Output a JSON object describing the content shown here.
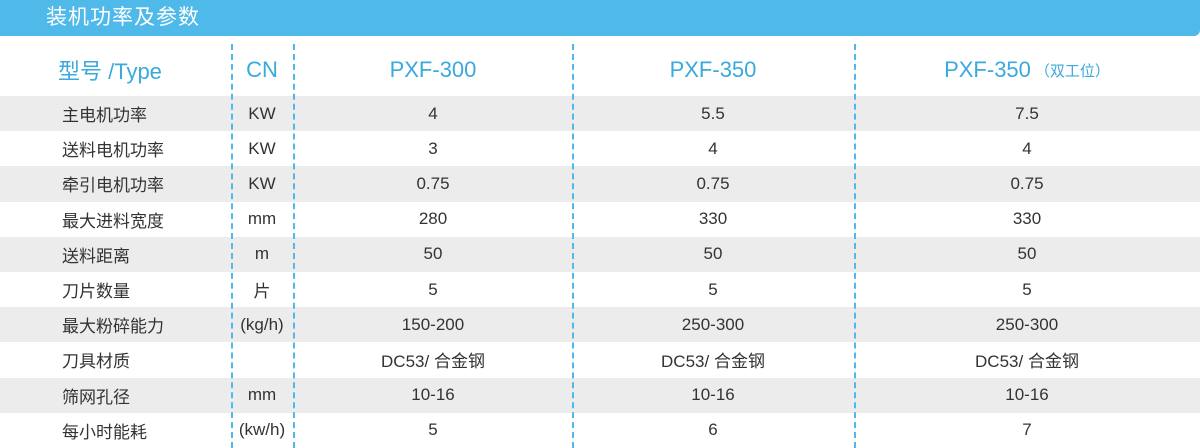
{
  "title": "装机功率及参数",
  "header": {
    "type": "型号 /Type",
    "unit": "CN",
    "models": [
      "PXF-300",
      "PXF-350",
      "PXF-350"
    ],
    "model3_suffix": "（双工位）"
  },
  "rows": [
    {
      "name": "主电机功率",
      "unit": "KW",
      "v": [
        "4",
        "5.5",
        "7.5"
      ]
    },
    {
      "name": "送料电机功率",
      "unit": "KW",
      "v": [
        "3",
        "4",
        "4"
      ]
    },
    {
      "name": "牵引电机功率",
      "unit": "KW",
      "v": [
        "0.75",
        "0.75",
        "0.75"
      ]
    },
    {
      "name": "最大进料宽度",
      "unit": "mm",
      "v": [
        "280",
        "330",
        "330"
      ]
    },
    {
      "name": "送料距离",
      "unit": "m",
      "v": [
        "50",
        "50",
        "50"
      ]
    },
    {
      "name": "刀片数量",
      "unit": "片",
      "v": [
        "5",
        "5",
        "5"
      ]
    },
    {
      "name": "最大粉碎能力",
      "unit": "(kg/h)",
      "v": [
        "150-200",
        "250-300",
        "250-300"
      ]
    },
    {
      "name": "刀具材质",
      "unit": "",
      "v": [
        "DC53/ 合金钢",
        "DC53/ 合金钢",
        "DC53/ 合金钢"
      ]
    },
    {
      "name": "筛网孔径",
      "unit": "mm",
      "v": [
        "10-16",
        "10-16",
        "10-16"
      ]
    },
    {
      "name": "每小时能耗",
      "unit": "(kw/h)",
      "v": [
        "5",
        "6",
        "7"
      ]
    }
  ],
  "colors": {
    "accent": "#4fb9e9",
    "header_text": "#3aa9dc",
    "stripe": "#ececec",
    "body_text": "#333333"
  }
}
